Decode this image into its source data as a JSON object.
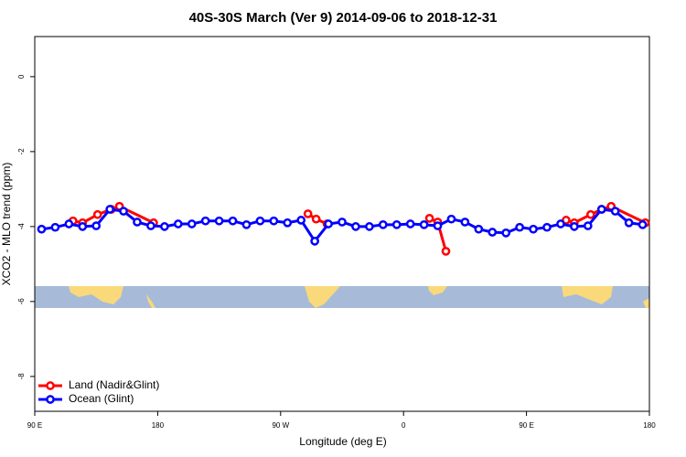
{
  "chart_data": {
    "type": "line",
    "title": "40S-30S March (Ver 9)   2014-09-06 to 2018-12-31",
    "x_label": "Longitude (deg E)",
    "y_label": "XCO2 - MLO trend (ppm)",
    "xlim": [
      90,
      540
    ],
    "xticks": [
      {
        "value": 90,
        "label": "90 E"
      },
      {
        "value": 180,
        "label": "180"
      },
      {
        "value": 270,
        "label": "90 W"
      },
      {
        "value": 360,
        "label": "0"
      },
      {
        "value": 450,
        "label": "90 E"
      },
      {
        "value": 540,
        "label": "180"
      }
    ],
    "ylim": [
      -8.93,
      1.07
    ],
    "yticks": [
      0,
      -2,
      -4,
      -6,
      -8
    ],
    "legend": "bottom-left",
    "series": [
      {
        "name": "Land (Nadir&Glint)",
        "color": "#ff0000",
        "x": [
          118,
          125,
          136,
          146,
          152,
          177,
          290,
          296,
          304,
          379,
          385,
          391,
          479,
          485,
          497,
          505,
          512,
          537
        ],
        "values": [
          -3.85,
          -3.9,
          -3.68,
          -3.54,
          -3.46,
          -3.9,
          -3.66,
          -3.8,
          -3.93,
          -3.78,
          -3.88,
          -4.66,
          -3.83,
          -3.9,
          -3.68,
          -3.54,
          -3.46,
          -3.9
        ]
      },
      {
        "name": "Ocean (Glint)",
        "color": "#0000ff",
        "x": [
          95,
          105,
          115,
          125,
          135,
          145,
          155,
          165,
          175,
          185,
          195,
          205,
          215,
          225,
          235,
          245,
          255,
          265,
          275,
          285,
          295,
          305,
          315,
          325,
          335,
          345,
          355,
          365,
          375,
          385,
          395,
          405,
          415,
          425,
          435,
          445,
          455,
          465,
          475,
          485,
          495,
          505,
          515,
          525,
          535
        ],
        "values": [
          -4.07,
          -4.02,
          -3.93,
          -4.0,
          -3.98,
          -3.54,
          -3.59,
          -3.88,
          -3.98,
          -4.0,
          -3.93,
          -3.93,
          -3.85,
          -3.85,
          -3.85,
          -3.95,
          -3.85,
          -3.85,
          -3.9,
          -3.83,
          -4.39,
          -3.93,
          -3.88,
          -4.0,
          -4.0,
          -3.95,
          -3.95,
          -3.93,
          -3.95,
          -3.98,
          -3.8,
          -3.88,
          -4.07,
          -4.15,
          -4.17,
          -4.02,
          -4.07,
          -4.02,
          -3.93,
          -4.0,
          -3.98,
          -3.54,
          -3.59,
          -3.9,
          -3.95
        ]
      }
    ]
  }
}
